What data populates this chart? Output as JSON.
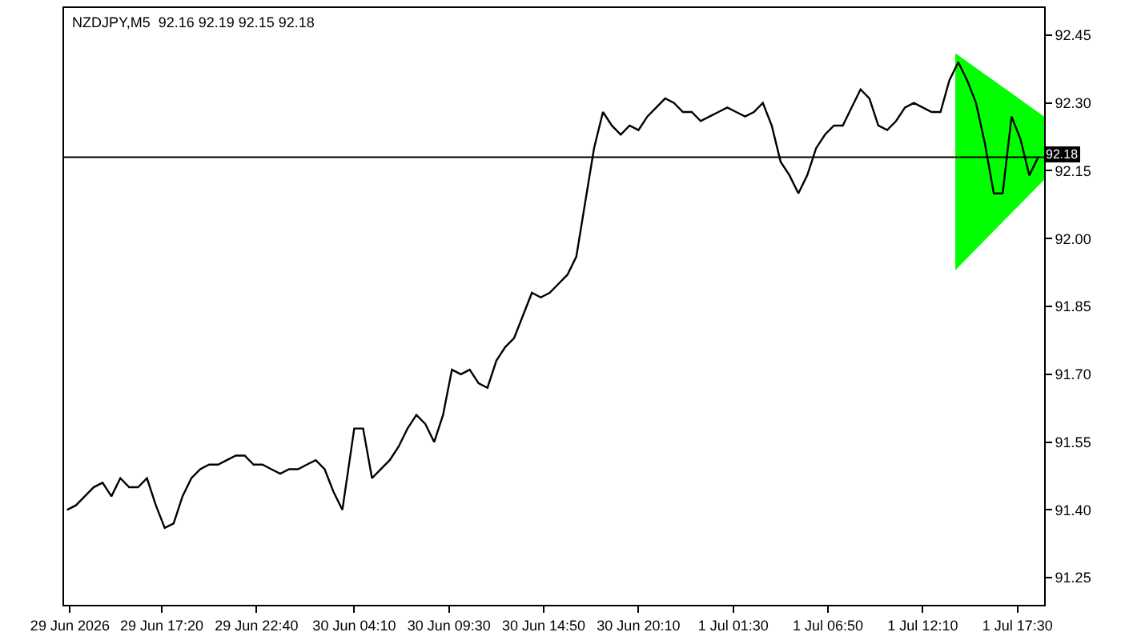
{
  "chart_data": {
    "type": "line",
    "title": "NZDJPY,M5  92.16 92.19 92.15 92.18",
    "series": [
      {
        "color": "#000000",
        "x": [
          "2026-06-29T12:00",
          "2026-06-29T12:30",
          "2026-06-29T13:00",
          "2026-06-29T13:30",
          "2026-06-29T14:00",
          "2026-06-29T14:30",
          "2026-06-29T15:00",
          "2026-06-29T15:30",
          "2026-06-29T16:00",
          "2026-06-29T16:30",
          "2026-06-29T17:00",
          "2026-06-29T17:30",
          "2026-06-29T18:00",
          "2026-06-29T18:30",
          "2026-06-29T19:00",
          "2026-06-29T19:30",
          "2026-06-29T20:00",
          "2026-06-29T20:30",
          "2026-06-29T21:00",
          "2026-06-29T21:30",
          "2026-06-29T22:00",
          "2026-06-29T22:30",
          "2026-06-29T23:00",
          "2026-06-29T23:30",
          "2026-06-30T00:00",
          "2026-06-30T00:30",
          "2026-06-30T01:00",
          "2026-06-30T01:30",
          "2026-06-30T02:00",
          "2026-06-30T02:30",
          "2026-06-30T03:00",
          "2026-06-30T03:30",
          "2026-06-30T04:10",
          "2026-06-30T04:40",
          "2026-06-30T05:10",
          "2026-06-30T05:40",
          "2026-06-30T06:10",
          "2026-06-30T06:40",
          "2026-06-30T07:10",
          "2026-06-30T07:40",
          "2026-06-30T08:10",
          "2026-06-30T08:40",
          "2026-06-30T09:10",
          "2026-06-30T09:40",
          "2026-06-30T10:10",
          "2026-06-30T10:40",
          "2026-06-30T11:10",
          "2026-06-30T11:40",
          "2026-06-30T12:10",
          "2026-06-30T12:40",
          "2026-06-30T13:10",
          "2026-06-30T13:40",
          "2026-06-30T14:10",
          "2026-06-30T14:40",
          "2026-06-30T15:10",
          "2026-06-30T15:40",
          "2026-06-30T16:10",
          "2026-06-30T16:40",
          "2026-06-30T17:10",
          "2026-06-30T17:40",
          "2026-06-30T18:10",
          "2026-06-30T18:40",
          "2026-06-30T19:10",
          "2026-06-30T19:40",
          "2026-06-30T20:10",
          "2026-06-30T20:40",
          "2026-06-30T21:10",
          "2026-06-30T21:40",
          "2026-06-30T22:10",
          "2026-06-30T22:40",
          "2026-06-30T23:10",
          "2026-06-30T23:40",
          "2026-07-01T00:10",
          "2026-07-01T00:40",
          "2026-07-01T01:10",
          "2026-07-01T01:40",
          "2026-07-01T02:10",
          "2026-07-01T02:40",
          "2026-07-01T03:10",
          "2026-07-01T03:40",
          "2026-07-01T04:10",
          "2026-07-01T04:40",
          "2026-07-01T05:10",
          "2026-07-01T05:40",
          "2026-07-01T06:10",
          "2026-07-01T06:40",
          "2026-07-01T07:10",
          "2026-07-01T07:40",
          "2026-07-01T08:10",
          "2026-07-01T08:40",
          "2026-07-01T09:10",
          "2026-07-01T09:40",
          "2026-07-01T10:10",
          "2026-07-01T10:40",
          "2026-07-01T11:10",
          "2026-07-01T11:40",
          "2026-07-01T12:10",
          "2026-07-01T12:40",
          "2026-07-01T13:10",
          "2026-07-01T13:40",
          "2026-07-01T14:10",
          "2026-07-01T14:40",
          "2026-07-01T15:10",
          "2026-07-01T15:40",
          "2026-07-01T16:10",
          "2026-07-01T16:40",
          "2026-07-01T17:10",
          "2026-07-01T17:40",
          "2026-07-01T18:10",
          "2026-07-01T18:40"
        ],
        "values": [
          91.4,
          91.41,
          91.43,
          91.45,
          91.46,
          91.43,
          91.47,
          91.45,
          91.45,
          91.47,
          91.41,
          91.36,
          91.37,
          91.43,
          91.47,
          91.49,
          91.5,
          91.5,
          91.51,
          91.52,
          91.52,
          91.5,
          91.5,
          91.49,
          91.48,
          91.49,
          91.49,
          91.5,
          91.51,
          91.49,
          91.44,
          91.4,
          91.58,
          91.58,
          91.47,
          91.49,
          91.51,
          91.54,
          91.58,
          91.61,
          91.59,
          91.55,
          91.61,
          91.71,
          91.7,
          91.71,
          91.68,
          91.67,
          91.73,
          91.76,
          91.78,
          91.83,
          91.88,
          91.87,
          91.88,
          91.9,
          91.92,
          91.96,
          92.08,
          92.2,
          92.28,
          92.25,
          92.23,
          92.25,
          92.24,
          92.27,
          92.29,
          92.31,
          92.3,
          92.28,
          92.28,
          92.26,
          92.27,
          92.28,
          92.29,
          92.28,
          92.27,
          92.28,
          92.3,
          92.25,
          92.17,
          92.14,
          92.1,
          92.14,
          92.2,
          92.23,
          92.25,
          92.25,
          92.29,
          92.33,
          92.31,
          92.25,
          92.24,
          92.26,
          92.29,
          92.3,
          92.29,
          92.28,
          92.28,
          92.35,
          92.39,
          92.35,
          92.3,
          92.21,
          92.1,
          92.1,
          92.27,
          92.22,
          92.14,
          92.18
        ]
      },
      {
        "type": "area",
        "color": "#00ff00",
        "x": [
          "2026-07-01T14:00",
          "2026-07-01T19:00",
          "2026-07-01T19:00",
          "2026-07-01T14:00"
        ],
        "values": [
          92.41,
          92.27,
          92.13,
          91.93
        ]
      }
    ],
    "xlim": [
      "2026-06-29T11:50",
      "2026-07-01T19:00"
    ],
    "xticks": [
      {
        "value": "2026-06-29T12:10",
        "label": "29 Jun 2026"
      },
      {
        "value": "2026-06-29T17:20",
        "label": "29 Jun 17:20"
      },
      {
        "value": "2026-06-29T22:40",
        "label": "29 Jun 22:40"
      },
      {
        "value": "2026-06-30T04:10",
        "label": "30 Jun 04:10"
      },
      {
        "value": "2026-06-30T09:30",
        "label": "30 Jun 09:30"
      },
      {
        "value": "2026-06-30T14:50",
        "label": "30 Jun 14:50"
      },
      {
        "value": "2026-06-30T20:10",
        "label": "30 Jun 20:10"
      },
      {
        "value": "2026-07-01T01:30",
        "label": "1 Jul 01:30"
      },
      {
        "value": "2026-07-01T06:50",
        "label": "1 Jul 06:50"
      },
      {
        "value": "2026-07-01T12:10",
        "label": "1 Jul 12:10"
      },
      {
        "value": "2026-07-01T17:30",
        "label": "1 Jul 17:30"
      }
    ],
    "ylim": [
      91.19,
      92.51
    ],
    "yticks": [
      {
        "value": 91.25,
        "label": "91.25"
      },
      {
        "value": 91.4,
        "label": "91.40"
      },
      {
        "value": 91.55,
        "label": "91.55"
      },
      {
        "value": 91.7,
        "label": "91.70"
      },
      {
        "value": 91.85,
        "label": "91.85"
      },
      {
        "value": 92.0,
        "label": "92.00"
      },
      {
        "value": 92.15,
        "label": "92.15"
      },
      {
        "value": 92.3,
        "label": "92.30"
      },
      {
        "value": 92.45,
        "label": "92.45"
      }
    ],
    "ref_lines": [
      {
        "axis": "y",
        "value": 92.18,
        "label": "92.18",
        "color": "#000000"
      }
    ],
    "grid": false
  }
}
